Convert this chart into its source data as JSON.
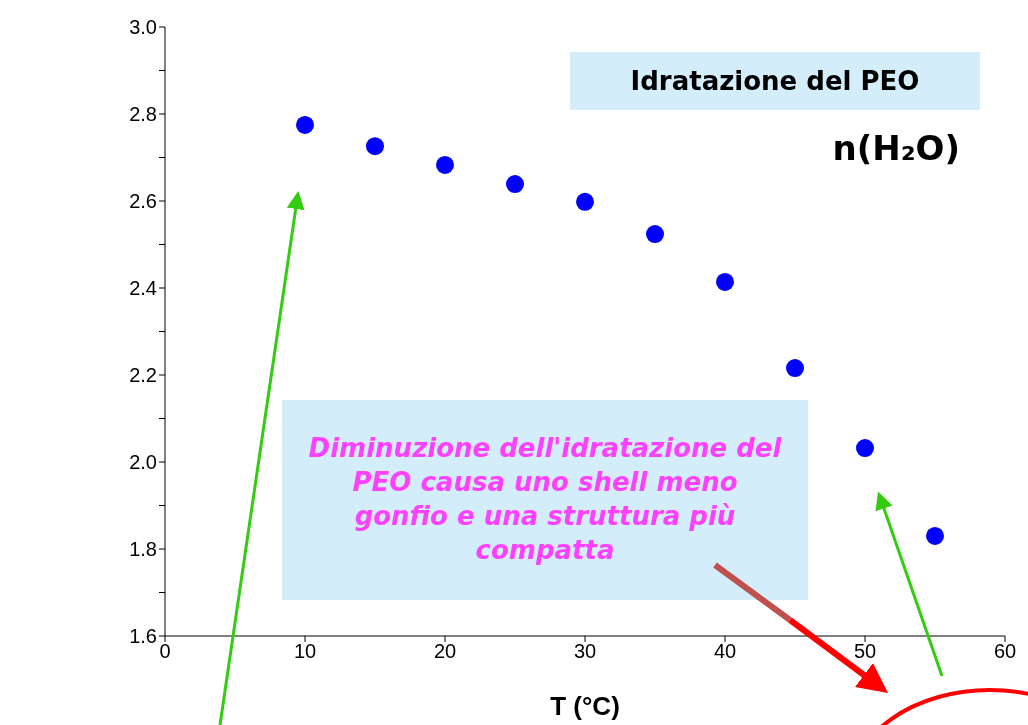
{
  "chart_data": {
    "type": "scatter",
    "xlabel": "T (°C)",
    "x": [
      10,
      15,
      20,
      25,
      30,
      35,
      40,
      45,
      50,
      55
    ],
    "series": [
      {
        "color": "#0000ff",
        "values": [
          2.775,
          2.726,
          2.683,
          2.639,
          2.598,
          2.524,
          2.414,
          2.216,
          2.032,
          1.83
        ]
      }
    ],
    "xlim": [
      0,
      60
    ],
    "xticks": [
      0,
      10,
      20,
      30,
      40,
      50,
      60
    ],
    "ylim": [
      1.6,
      3.0
    ],
    "yticks": [
      {
        "value": 1.6,
        "label": "1.6"
      },
      {
        "value": 1.7,
        "label": null
      },
      {
        "value": 1.8,
        "label": "1.8"
      },
      {
        "value": 1.9,
        "label": null
      },
      {
        "value": 2.0,
        "label": "2.0"
      },
      {
        "value": 2.1,
        "label": null
      },
      {
        "value": 2.2,
        "label": "2.2"
      },
      {
        "value": 2.3,
        "label": null
      },
      {
        "value": 2.4,
        "label": "2.4"
      },
      {
        "value": 2.5,
        "label": null
      },
      {
        "value": 2.6,
        "label": "2.6"
      },
      {
        "value": 2.7,
        "label": null
      },
      {
        "value": 2.8,
        "label": "2.8"
      },
      {
        "value": 2.9,
        "label": null
      },
      {
        "value": 3.0,
        "label": "3.0"
      }
    ],
    "marker": "circle",
    "grid": false,
    "legend": false,
    "annotations": [
      "Idratazione del PEO",
      "n(H₂O)",
      "Diminuzione dell'idratazione del PEO causa uno shell meno gonfio e una struttura più compatta"
    ]
  }
}
